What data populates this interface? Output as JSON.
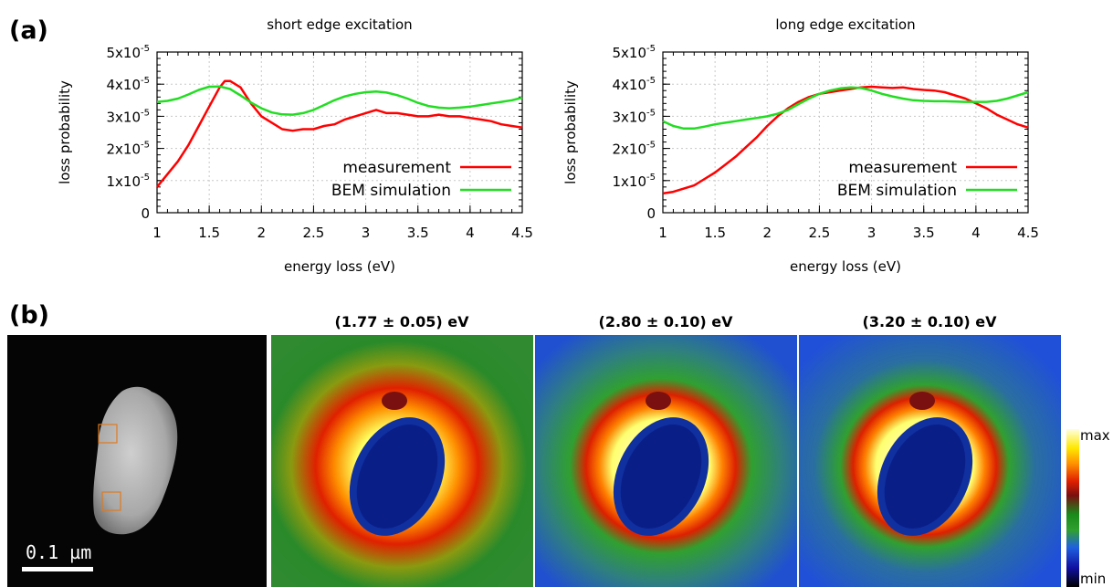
{
  "panel_labels": {
    "a": "(a)",
    "b": "(b)"
  },
  "chart_data": [
    {
      "type": "line",
      "title": "short edge excitation",
      "xlabel": "energy loss (eV)",
      "ylabel": "loss probability",
      "xlim": [
        1,
        4.5
      ],
      "ylim": [
        0,
        5e-05
      ],
      "xticks": [
        "1",
        "1.5",
        "2",
        "2.5",
        "3",
        "3.5",
        "4",
        "4.5"
      ],
      "yticks": [
        "0",
        "1x10-5",
        "2x10-5",
        "3x10-5",
        "4x10-5",
        "5x10-5"
      ],
      "grid": true,
      "legend": "bottom-right",
      "series": [
        {
          "name": "measurement",
          "color": "#ff0000",
          "x": [
            1.0,
            1.1,
            1.2,
            1.3,
            1.4,
            1.5,
            1.6,
            1.65,
            1.7,
            1.8,
            1.9,
            2.0,
            2.1,
            2.2,
            2.3,
            2.4,
            2.5,
            2.6,
            2.7,
            2.8,
            2.9,
            3.0,
            3.1,
            3.2,
            3.3,
            3.4,
            3.5,
            3.6,
            3.7,
            3.8,
            3.9,
            4.0,
            4.1,
            4.2,
            4.3,
            4.4,
            4.5
          ],
          "y": [
            8e-06,
            1.2e-05,
            1.6e-05,
            2.1e-05,
            2.7e-05,
            3.3e-05,
            3.9e-05,
            4.1e-05,
            4.1e-05,
            3.9e-05,
            3.4e-05,
            3e-05,
            2.8e-05,
            2.6e-05,
            2.55e-05,
            2.6e-05,
            2.6e-05,
            2.7e-05,
            2.75e-05,
            2.9e-05,
            3e-05,
            3.1e-05,
            3.2e-05,
            3.1e-05,
            3.1e-05,
            3.05e-05,
            3e-05,
            3e-05,
            3.05e-05,
            3e-05,
            3e-05,
            2.95e-05,
            2.9e-05,
            2.85e-05,
            2.75e-05,
            2.7e-05,
            2.65e-05
          ]
        },
        {
          "name": "BEM simulation",
          "color": "#22dd22",
          "x": [
            1.0,
            1.1,
            1.2,
            1.3,
            1.4,
            1.5,
            1.6,
            1.7,
            1.8,
            1.9,
            2.0,
            2.1,
            2.2,
            2.3,
            2.4,
            2.5,
            2.6,
            2.7,
            2.8,
            2.9,
            3.0,
            3.1,
            3.2,
            3.3,
            3.4,
            3.5,
            3.6,
            3.7,
            3.8,
            3.9,
            4.0,
            4.1,
            4.2,
            4.3,
            4.4,
            4.5
          ],
          "y": [
            3.45e-05,
            3.48e-05,
            3.55e-05,
            3.68e-05,
            3.82e-05,
            3.92e-05,
            3.93e-05,
            3.85e-05,
            3.65e-05,
            3.43e-05,
            3.25e-05,
            3.12e-05,
            3.06e-05,
            3.05e-05,
            3.1e-05,
            3.2e-05,
            3.35e-05,
            3.5e-05,
            3.62e-05,
            3.7e-05,
            3.75e-05,
            3.77e-05,
            3.74e-05,
            3.66e-05,
            3.55e-05,
            3.42e-05,
            3.32e-05,
            3.27e-05,
            3.25e-05,
            3.27e-05,
            3.3e-05,
            3.35e-05,
            3.4e-05,
            3.45e-05,
            3.5e-05,
            3.58e-05
          ]
        }
      ]
    },
    {
      "type": "line",
      "title": "long edge excitation",
      "xlabel": "energy loss (eV)",
      "ylabel": "loss probability",
      "xlim": [
        1,
        4.5
      ],
      "ylim": [
        0,
        5e-05
      ],
      "xticks": [
        "1",
        "1.5",
        "2",
        "2.5",
        "3",
        "3.5",
        "4",
        "4.5"
      ],
      "yticks": [
        "0",
        "1x10-5",
        "2x10-5",
        "3x10-5",
        "4x10-5",
        "5x10-5"
      ],
      "grid": true,
      "legend": "bottom-right",
      "series": [
        {
          "name": "measurement",
          "color": "#ff0000",
          "x": [
            1.0,
            1.1,
            1.2,
            1.3,
            1.4,
            1.5,
            1.6,
            1.7,
            1.8,
            1.9,
            2.0,
            2.1,
            2.2,
            2.3,
            2.4,
            2.5,
            2.6,
            2.7,
            2.8,
            2.9,
            3.0,
            3.1,
            3.2,
            3.3,
            3.4,
            3.5,
            3.6,
            3.7,
            3.8,
            3.9,
            4.0,
            4.1,
            4.2,
            4.3,
            4.4,
            4.5
          ],
          "y": [
            6e-06,
            6.5e-06,
            7.5e-06,
            8.5e-06,
            1.05e-05,
            1.25e-05,
            1.5e-05,
            1.75e-05,
            2.05e-05,
            2.35e-05,
            2.7e-05,
            3e-05,
            3.25e-05,
            3.45e-05,
            3.6e-05,
            3.7e-05,
            3.75e-05,
            3.8e-05,
            3.85e-05,
            3.9e-05,
            3.92e-05,
            3.9e-05,
            3.88e-05,
            3.9e-05,
            3.85e-05,
            3.82e-05,
            3.8e-05,
            3.75e-05,
            3.65e-05,
            3.55e-05,
            3.4e-05,
            3.25e-05,
            3.05e-05,
            2.9e-05,
            2.75e-05,
            2.65e-05
          ]
        },
        {
          "name": "BEM simulation",
          "color": "#22dd22",
          "x": [
            1.0,
            1.1,
            1.2,
            1.3,
            1.4,
            1.5,
            1.6,
            1.7,
            1.8,
            1.9,
            2.0,
            2.1,
            2.2,
            2.3,
            2.4,
            2.5,
            2.6,
            2.7,
            2.8,
            2.9,
            3.0,
            3.1,
            3.2,
            3.3,
            3.4,
            3.5,
            3.6,
            3.7,
            3.8,
            3.9,
            4.0,
            4.1,
            4.2,
            4.3,
            4.4,
            4.5
          ],
          "y": [
            2.85e-05,
            2.7e-05,
            2.62e-05,
            2.62e-05,
            2.68e-05,
            2.75e-05,
            2.8e-05,
            2.85e-05,
            2.9e-05,
            2.95e-05,
            3e-05,
            3.08e-05,
            3.2e-05,
            3.38e-05,
            3.55e-05,
            3.7e-05,
            3.8e-05,
            3.87e-05,
            3.9e-05,
            3.88e-05,
            3.8e-05,
            3.7e-05,
            3.62e-05,
            3.55e-05,
            3.5e-05,
            3.48e-05,
            3.47e-05,
            3.47e-05,
            3.46e-05,
            3.45e-05,
            3.45e-05,
            3.45e-05,
            3.48e-05,
            3.55e-05,
            3.65e-05,
            3.75e-05
          ]
        }
      ]
    }
  ],
  "maps": {
    "titles": [
      "(1.77 ± 0.05) eV",
      "(2.80 ± 0.10) eV",
      "(3.20 ± 0.10) eV"
    ],
    "scale_bar": "0.1 µm",
    "colorbar": {
      "max_label": "max",
      "min_label": "min"
    }
  }
}
